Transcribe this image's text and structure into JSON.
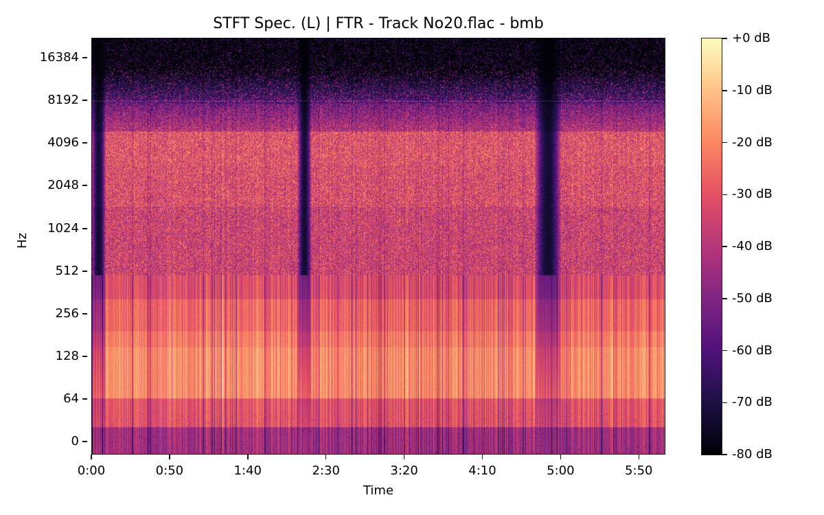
{
  "chart_data": {
    "type": "heatmap",
    "subtype": "spectrogram",
    "title": "STFT Spec. (L) | FTR - Track No20.flac - bmb",
    "xlabel": "Time",
    "ylabel": "Hz",
    "x_scale": "time (m:ss)",
    "y_scale": "log2",
    "x_ticks": [
      "0:00",
      "0:50",
      "1:40",
      "2:30",
      "3:20",
      "4:10",
      "5:00",
      "5:50"
    ],
    "x_tick_seconds": [
      0,
      50,
      100,
      150,
      200,
      250,
      300,
      350
    ],
    "xlim_seconds": [
      0,
      367
    ],
    "y_ticks": [
      "0",
      "64",
      "128",
      "256",
      "512",
      "1024",
      "2048",
      "4096",
      "8192",
      "16384"
    ],
    "ylim_hz": [
      0,
      22050
    ],
    "colormap": "magma",
    "colorbar": {
      "ticks": [
        "+0 dB",
        "-10 dB",
        "-20 dB",
        "-30 dB",
        "-40 dB",
        "-50 dB",
        "-60 dB",
        "-70 dB",
        "-80 dB"
      ],
      "range_db": [
        -80,
        0
      ]
    },
    "features": {
      "quiet_gaps_seconds": [
        [
          0,
          8
        ],
        [
          132,
          140
        ],
        [
          284,
          300
        ]
      ],
      "loudest_band_hz": [
        64,
        250
      ],
      "energy_band_hz": [
        2000,
        5000
      ],
      "high_freq_rolloff_hz": 8192,
      "sub_bass_0_64hz_level_db": -50
    }
  },
  "colors": {
    "frame": "#111111",
    "background": "#ffffff",
    "magma_stops": [
      "#000004",
      "#1c1044",
      "#4f127b",
      "#812581",
      "#b5367a",
      "#e55064",
      "#fb8761",
      "#fec287",
      "#fcfdbf"
    ]
  }
}
